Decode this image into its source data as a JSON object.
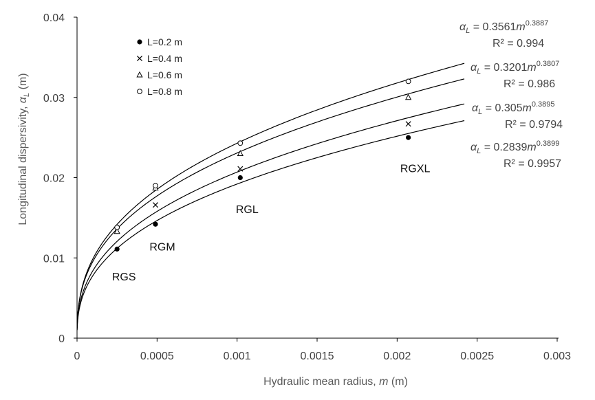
{
  "chart_data": {
    "type": "scatter",
    "xlabel_prefix": "Hydraulic mean radius, ",
    "xlabel_var": "m",
    "xlabel_unit": " (m)",
    "ylabel_prefix": "Longitudinal dispersivity, ",
    "ylabel_var": "α",
    "ylabel_sub": "L",
    "ylabel_unit": " (m)",
    "xlim": [
      0,
      0.003
    ],
    "ylim": [
      0,
      0.04
    ],
    "xticks": [
      0,
      0.0005,
      0.001,
      0.0015,
      0.002,
      0.0025,
      0.003
    ],
    "xtick_labels": [
      "0",
      "0.0005",
      "0.001",
      "0.0015",
      "0.002",
      "0.0025",
      "0.003"
    ],
    "yticks": [
      0,
      0.01,
      0.02,
      0.03,
      0.04
    ],
    "ytick_labels": [
      "0",
      "0.01",
      "0.02",
      "0.03",
      "0.04"
    ],
    "series": [
      {
        "name": "L=0.2 m",
        "marker": "filled-circle",
        "x": [
          0.00025,
          0.00049,
          0.00102,
          0.00207
        ],
        "y": [
          0.0111,
          0.0142,
          0.02,
          0.025
        ],
        "fit": {
          "a": 0.2839,
          "b": 0.3899,
          "eq_lhs": "α",
          "eq_sub": "L",
          "eq_mid": " = 0.2839",
          "eq_var": "m",
          "eq_exp": "0.3899",
          "r2": "R² = 0.9957"
        }
      },
      {
        "name": "L=0.4 m",
        "marker": "cross",
        "x": [
          0.00049,
          0.00102,
          0.00207
        ],
        "y": [
          0.0166,
          0.0211,
          0.0267
        ],
        "fit": {
          "a": 0.305,
          "b": 0.3895,
          "eq_lhs": "α",
          "eq_sub": "L",
          "eq_mid": " = 0.305",
          "eq_var": "m",
          "eq_exp": "0.3895",
          "r2": "R² = 0.9794"
        }
      },
      {
        "name": "L=0.6 m",
        "marker": "open-triangle",
        "x": [
          0.00025,
          0.00049,
          0.00102,
          0.00207
        ],
        "y": [
          0.0133,
          0.0187,
          0.023,
          0.03
        ],
        "fit": {
          "a": 0.3201,
          "b": 0.3807,
          "eq_lhs": "α",
          "eq_sub": "L",
          "eq_mid": " = 0.3201",
          "eq_var": "m",
          "eq_exp": "0.3807",
          "r2": "R² = 0.986"
        }
      },
      {
        "name": "L=0.8 m",
        "marker": "open-circle",
        "x": [
          0.00025,
          0.00049,
          0.00102,
          0.00207
        ],
        "y": [
          0.0138,
          0.019,
          0.0243,
          0.032
        ],
        "fit": {
          "a": 0.3561,
          "b": 0.3887,
          "eq_lhs": "α",
          "eq_sub": "L",
          "eq_mid": " = 0.3561",
          "eq_var": "m",
          "eq_exp": "0.3887",
          "r2": "R² = 0.994"
        }
      }
    ],
    "group_labels": [
      {
        "text": "RGS",
        "x": 0.00025,
        "y": 0.0072
      },
      {
        "text": "RGM",
        "x": 0.00049,
        "y": 0.0109
      },
      {
        "text": "RGL",
        "x": 0.00102,
        "y": 0.0156
      },
      {
        "text": "RGXL",
        "x": 0.00207,
        "y": 0.0207
      }
    ]
  }
}
